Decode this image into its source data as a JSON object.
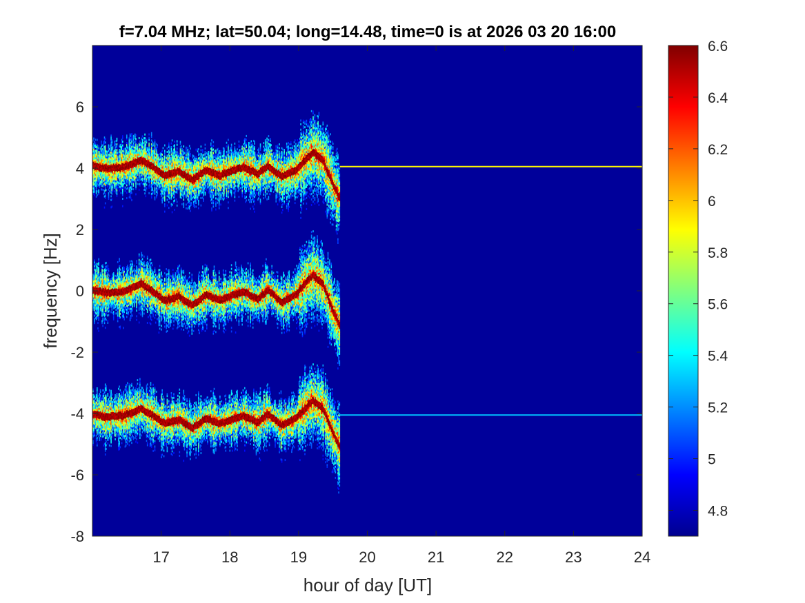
{
  "chart_data": {
    "type": "heatmap",
    "title": "f=7.04 MHz;  lat=50.04; long=14.48, time=0 is at 2026 03 20 16:00",
    "xlabel": "hour of day [UT]",
    "ylabel": "frequency [Hz]",
    "xlim": [
      16,
      24
    ],
    "ylim": [
      -8,
      8
    ],
    "x_ticks": [
      "17",
      "18",
      "19",
      "20",
      "21",
      "22",
      "23",
      "24"
    ],
    "y_ticks": [
      "-8",
      "-6",
      "-4",
      "-2",
      "0",
      "2",
      "4",
      "6"
    ],
    "colorbar": {
      "range": [
        4.7,
        6.6
      ],
      "ticks": [
        "4.8",
        "5",
        "5.2",
        "5.4",
        "5.6",
        "5.8",
        "6",
        "6.2",
        "6.4",
        "6.6"
      ],
      "colormap": "jet"
    },
    "background_value": 4.75,
    "grid": false,
    "traces": [
      {
        "center_hz": 4.05,
        "start_hour": 16.0,
        "end_hour": 19.6,
        "peak_value": 6.6,
        "continues_to_hour": 24.0,
        "continuation_value": 5.9
      },
      {
        "center_hz": 0.0,
        "start_hour": 16.0,
        "end_hour": 19.6,
        "peak_value": 6.6
      },
      {
        "center_hz": -4.05,
        "start_hour": 16.0,
        "end_hour": 19.6,
        "peak_value": 6.6,
        "continues_to_hour": 24.0,
        "continuation_value": 5.3
      }
    ],
    "doppler_shift_samples_hz": [
      [
        16.0,
        0.0
      ],
      [
        16.2,
        -0.1
      ],
      [
        16.45,
        -0.05
      ],
      [
        16.7,
        0.2
      ],
      [
        16.85,
        0.0
      ],
      [
        17.05,
        -0.35
      ],
      [
        17.25,
        -0.2
      ],
      [
        17.45,
        -0.5
      ],
      [
        17.65,
        -0.15
      ],
      [
        17.85,
        -0.35
      ],
      [
        18.0,
        -0.2
      ],
      [
        18.2,
        -0.05
      ],
      [
        18.4,
        -0.3
      ],
      [
        18.55,
        0.0
      ],
      [
        18.75,
        -0.4
      ],
      [
        18.95,
        -0.15
      ],
      [
        19.05,
        0.1
      ],
      [
        19.2,
        0.5
      ],
      [
        19.35,
        0.2
      ],
      [
        19.5,
        -0.7
      ],
      [
        19.6,
        -1.2
      ]
    ]
  }
}
